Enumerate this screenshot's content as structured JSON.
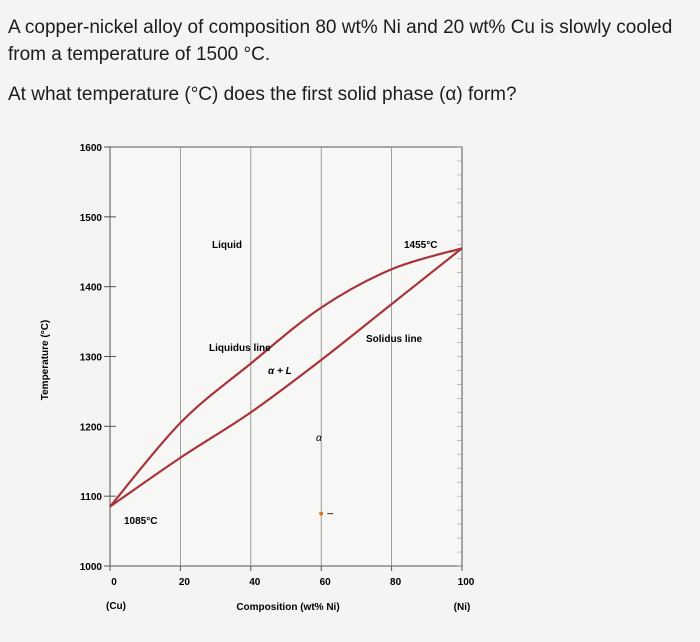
{
  "question": {
    "text1": "A copper-nickel alloy of composition 80 wt% Ni and 20 wt% Cu is slowly cooled from a temperature of 1500 °C.",
    "text2": "At what temperature (°C) does the first solid phase (α) form?"
  },
  "chart_data": {
    "type": "line",
    "ylabel": "Temperature (°C)",
    "xlabel": "Composition (wt% Ni)",
    "x_ticks": [
      0,
      20,
      40,
      60,
      80,
      100
    ],
    "y_ticks": [
      1000,
      1100,
      1200,
      1300,
      1400,
      1500,
      1600
    ],
    "xlim": [
      0,
      100
    ],
    "ylim": [
      1000,
      1600
    ],
    "x_end_labels": {
      "left": "(Cu)",
      "right": "(Ni)"
    },
    "series": [
      {
        "name": "Liquidus line",
        "x": [
          0,
          20,
          40,
          60,
          80,
          100
        ],
        "y": [
          1085,
          1205,
          1290,
          1370,
          1425,
          1455
        ]
      },
      {
        "name": "Solidus line",
        "x": [
          0,
          20,
          40,
          60,
          80,
          100
        ],
        "y": [
          1085,
          1155,
          1220,
          1295,
          1375,
          1455
        ]
      }
    ],
    "annotations": {
      "liquid": "Liquid",
      "liquidus": "Liquidus line",
      "solidus": "Solidus line",
      "alpha_l": "α + L",
      "alpha": "α",
      "cu_melt": "1085°C",
      "ni_melt": "1455°C"
    },
    "grid": true,
    "line_color": "#a8343a"
  }
}
